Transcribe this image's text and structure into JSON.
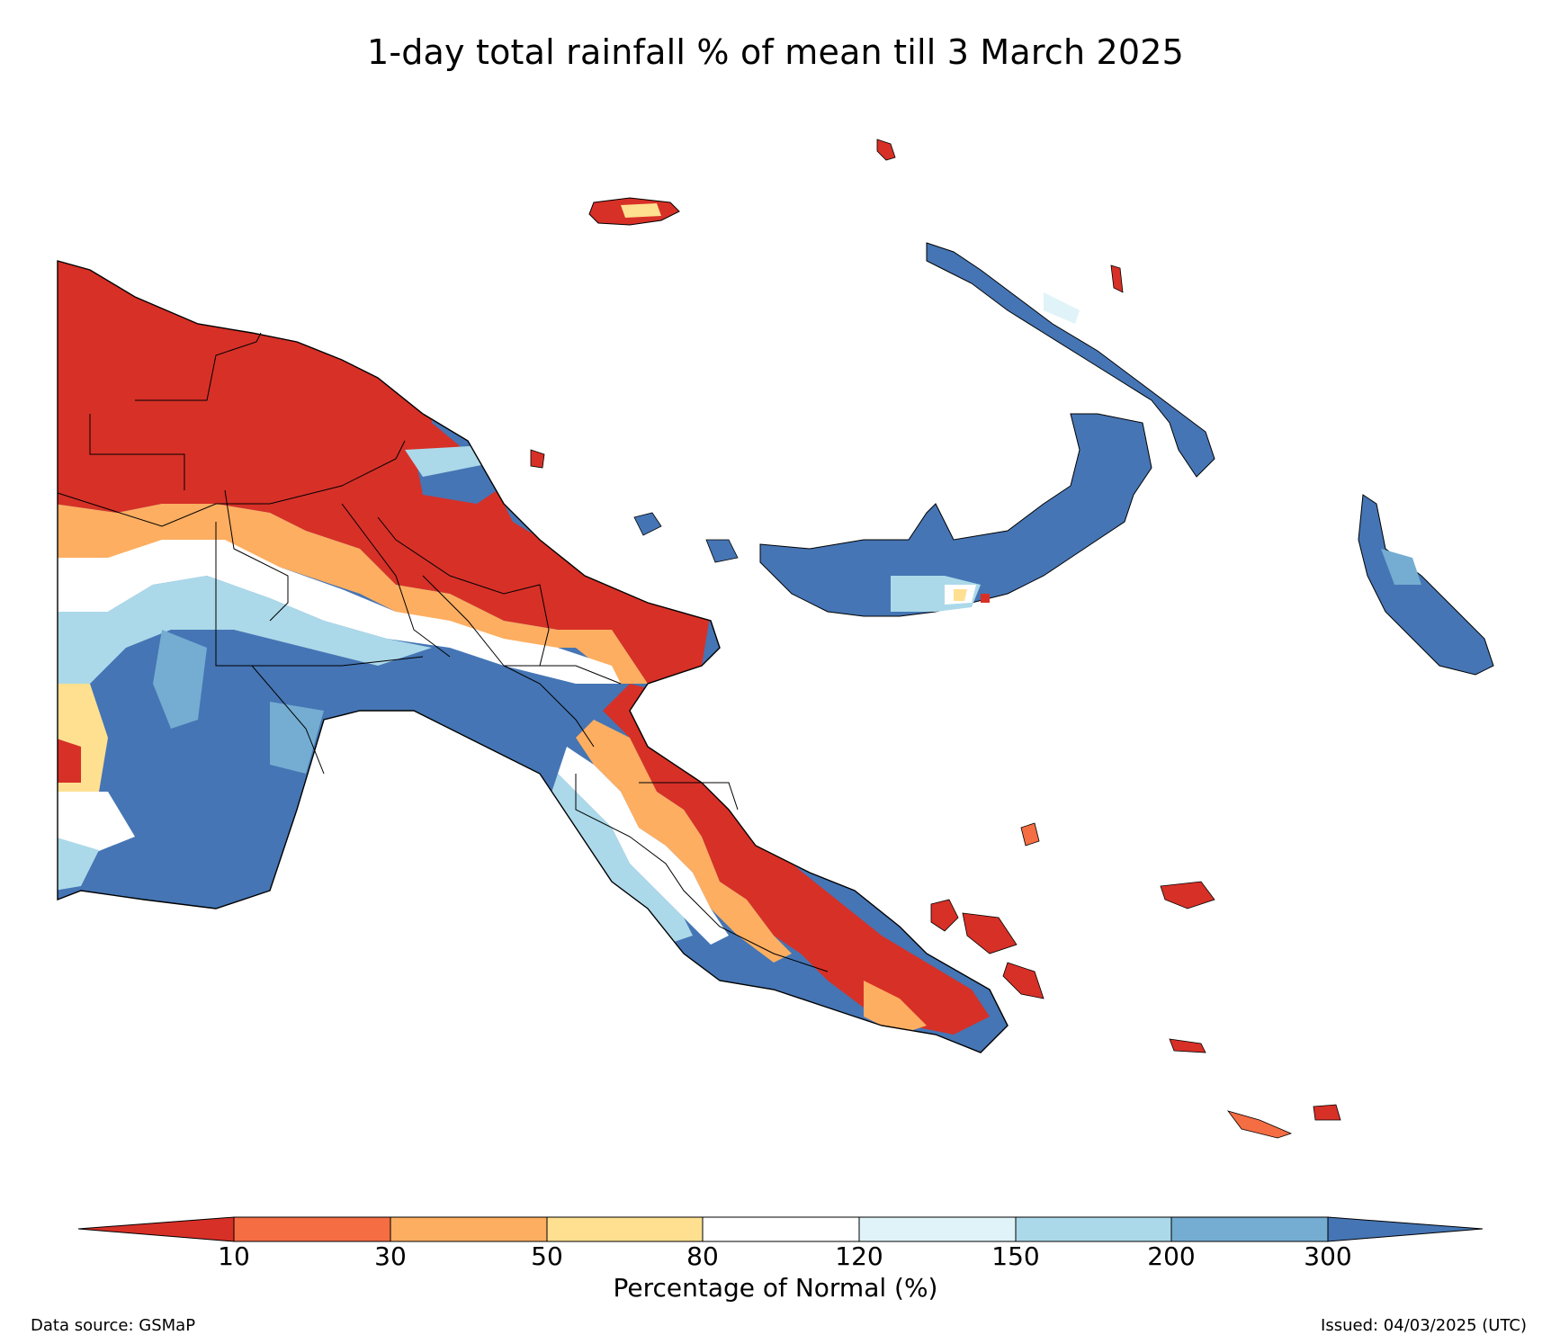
{
  "title": "1-day total rainfall % of mean till 3 March 2025",
  "colorbar": {
    "label": "Percentage of Normal (%)",
    "ticks": [
      "10",
      "30",
      "50",
      "80",
      "120",
      "150",
      "200",
      "300"
    ],
    "colors": {
      "below_10": "#d73027",
      "10_30": "#f46d43",
      "30_50": "#fdae61",
      "50_80": "#fee090",
      "80_120": "#ffffff",
      "120_150": "#e0f3f8",
      "150_200": "#abd9e9",
      "200_300": "#74add1",
      "above_300": "#4575b4"
    }
  },
  "footer": {
    "source": "Data source: GSMaP",
    "issued": "Issued: 04/03/2025 (UTC)"
  }
}
